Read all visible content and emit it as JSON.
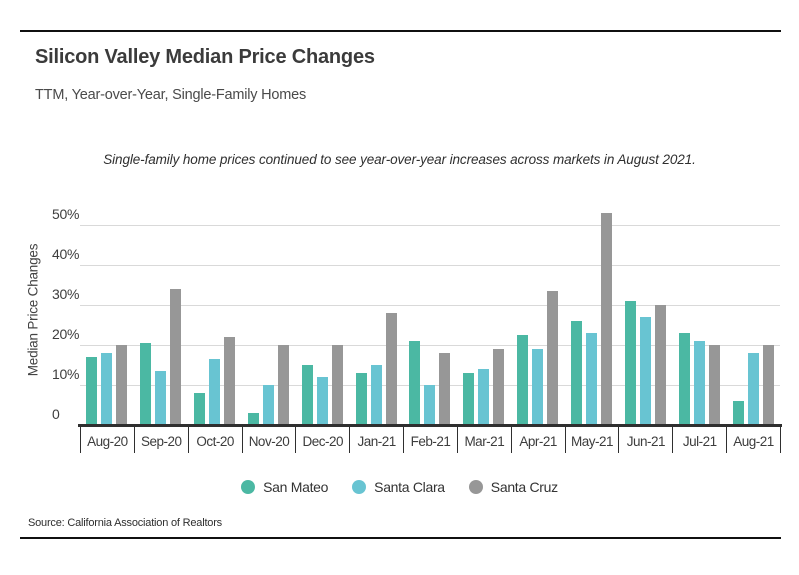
{
  "page": {
    "source": "Source:  California Association of Realtors"
  },
  "chart_data": {
    "type": "bar",
    "title": "Silicon Valley Median Price Changes",
    "subtitle": "TTM, Year-over-Year, Single-Family Homes",
    "annotation": "Single-family home prices continued to see year-over-year increases across markets in August 2021.",
    "xlabel": "",
    "ylabel": "Median Price Changes",
    "ylim": [
      0,
      55
    ],
    "grid": true,
    "legend_position": "bottom",
    "yticks": [
      {
        "value": 0,
        "label": "0"
      },
      {
        "value": 10,
        "label": "10%"
      },
      {
        "value": 20,
        "label": "20%"
      },
      {
        "value": 30,
        "label": "30%"
      },
      {
        "value": 40,
        "label": "40%"
      },
      {
        "value": 50,
        "label": "50%"
      }
    ],
    "categories": [
      "Aug-20",
      "Sep-20",
      "Oct-20",
      "Nov-20",
      "Dec-20",
      "Jan-21",
      "Feb-21",
      "Mar-21",
      "Apr-21",
      "May-21",
      "Jun-21",
      "Jul-21",
      "Aug-21"
    ],
    "series": [
      {
        "name": "San Mateo",
        "color": "#4bb8a3",
        "values": [
          17,
          20.5,
          8,
          3,
          15,
          13,
          21,
          13,
          22.5,
          26,
          31,
          23,
          6
        ]
      },
      {
        "name": "Santa Clara",
        "color": "#68c4d2",
        "values": [
          18,
          13.5,
          16.5,
          10,
          12,
          15,
          10,
          14,
          19,
          23,
          27,
          21,
          18
        ]
      },
      {
        "name": "Santa Cruz",
        "color": "#979797",
        "values": [
          20,
          34,
          22,
          20,
          20,
          28,
          18,
          19,
          33.5,
          53,
          30,
          20,
          20
        ]
      }
    ],
    "colors": {
      "gridline": "#d9d9d9",
      "axis": "#2f2f2f"
    }
  }
}
